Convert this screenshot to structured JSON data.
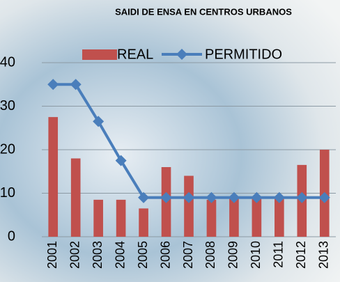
{
  "chart_data": {
    "type": "bar",
    "title": "SAIDI  DE  ENSA  EN CENTROS URBANOS",
    "categories": [
      "2001",
      "2002",
      "2003",
      "2004",
      "2005",
      "2006",
      "2007",
      "2008",
      "2009",
      "2010",
      "2011",
      "2012",
      "2013"
    ],
    "series": [
      {
        "name": "REAL",
        "type": "bar",
        "color": "#c0504d",
        "values": [
          27.5,
          18,
          8.5,
          8.5,
          6.5,
          16,
          14,
          8.5,
          9,
          9,
          9,
          16.5,
          20
        ]
      },
      {
        "name": "PERMITIDO",
        "type": "line",
        "color": "#4a7ebb",
        "values": [
          35,
          35,
          26.5,
          17.5,
          9,
          9,
          9,
          9,
          9,
          9,
          9,
          9,
          9
        ]
      }
    ],
    "ylim": [
      0,
      40
    ],
    "yticks": [
      0,
      10,
      20,
      30,
      40
    ],
    "grid": true
  }
}
